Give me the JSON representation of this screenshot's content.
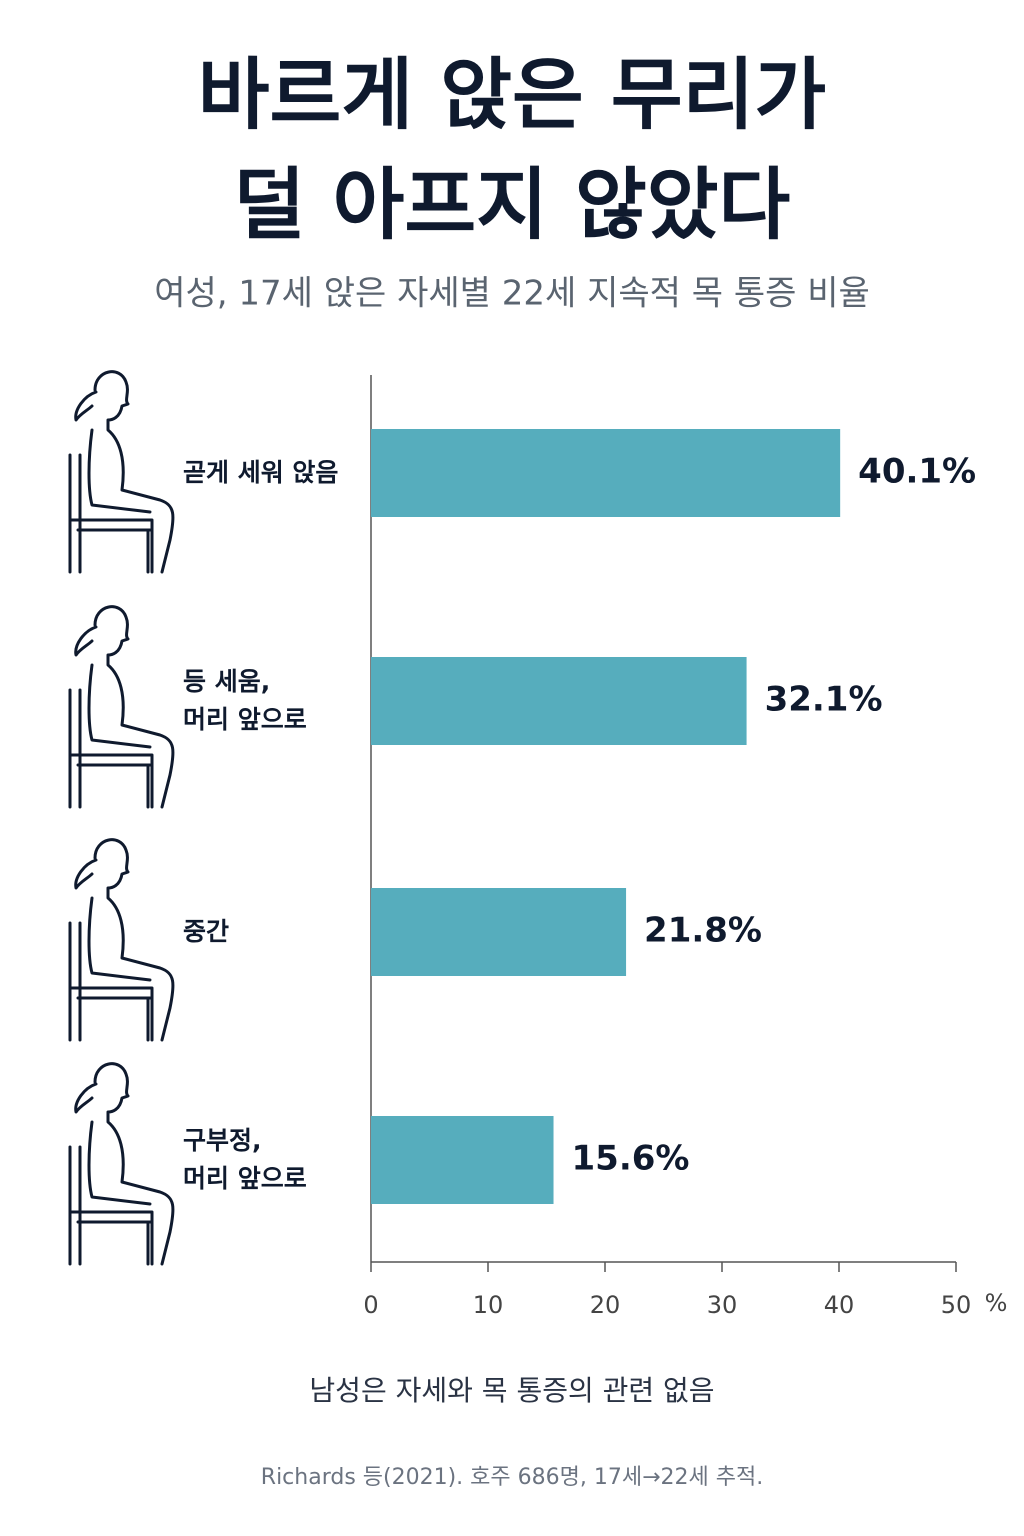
{
  "chart_data": {
    "type": "hbar",
    "title": [
      "바르게 앉은 무리가",
      "덜 아프지 않았다"
    ],
    "subtitle": "여성, 17세 앉은 자세별 22세 지속적 목 통증 비율",
    "categories": [
      "곧게 세워 앉음",
      "등 세움,\n머리 앞으로",
      "중간",
      "구부정,\n머리 앞으로"
    ],
    "values": [
      40.1,
      32.1,
      21.8,
      15.6
    ],
    "value_labels": [
      "40.1%",
      "32.1%",
      "21.8%",
      "15.6%"
    ],
    "color": "#56adbd",
    "xlim": [
      0,
      50
    ],
    "xticks": [
      0,
      10,
      20,
      30,
      40,
      50
    ],
    "x_label": "%",
    "note": "남성은 자세와 목 통증의 관련 없음",
    "source": "Richards 등(2021). 호주 686명, 17세→22세 추적."
  }
}
